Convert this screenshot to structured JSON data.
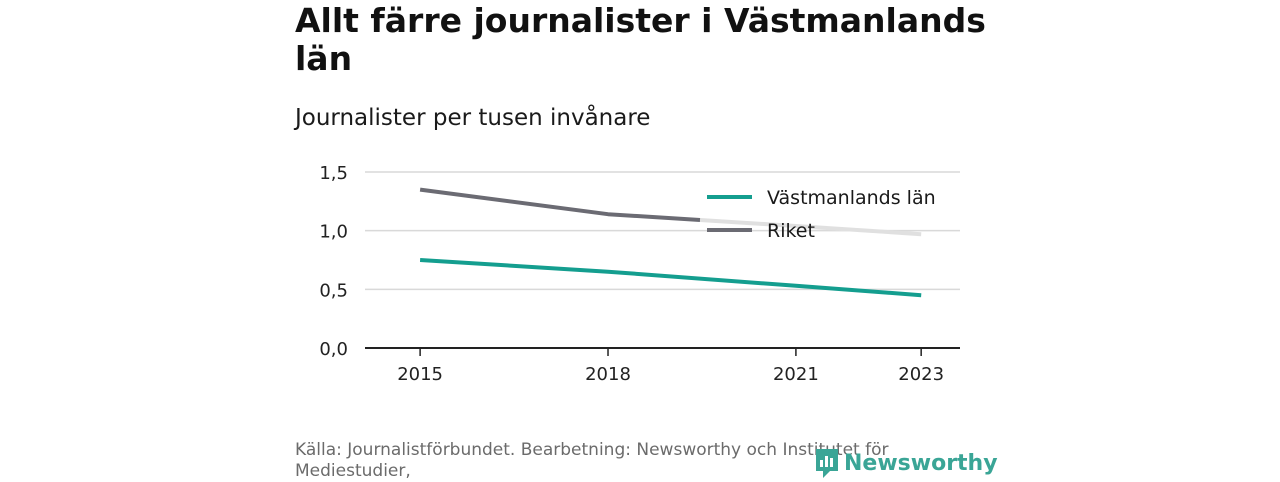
{
  "header": {
    "title": "Allt färre journalister i Västmanlands län",
    "subtitle": "Journalister per tusen invånare"
  },
  "footer": {
    "source": "Källa: Journalistförbundet. Bearbetning: Newsworthy och Institutet för Mediestudier,",
    "logo_text": "Newsworthy"
  },
  "colors": {
    "vastmanland": "#149e8f",
    "riket": "#6b6b73",
    "riket_faded": "#e0e0e0",
    "grid": "#d9d9d9",
    "axis": "#222222"
  },
  "chart_data": {
    "type": "line",
    "title": "Allt färre journalister i Västmanlands län",
    "subtitle": "Journalister per tusen invånare",
    "xlabel": "",
    "ylabel": "",
    "x": [
      2015,
      2018,
      2021,
      2023
    ],
    "x_tick_labels": [
      "2015",
      "2018",
      "2021",
      "2023"
    ],
    "y_ticks": [
      0,
      0.5,
      1.0,
      1.5
    ],
    "y_tick_labels": [
      "0,0",
      "0,5",
      "1,0",
      "1,5"
    ],
    "ylim": [
      0,
      1.5
    ],
    "grid": true,
    "legend_position": "top-right",
    "series": [
      {
        "name": "Västmanlands län",
        "color": "#149e8f",
        "values": [
          0.75,
          0.65,
          0.53,
          0.45
        ]
      },
      {
        "name": "Riket",
        "color": "#6b6b73",
        "values": [
          1.35,
          1.14,
          1.04,
          0.97
        ]
      }
    ]
  }
}
